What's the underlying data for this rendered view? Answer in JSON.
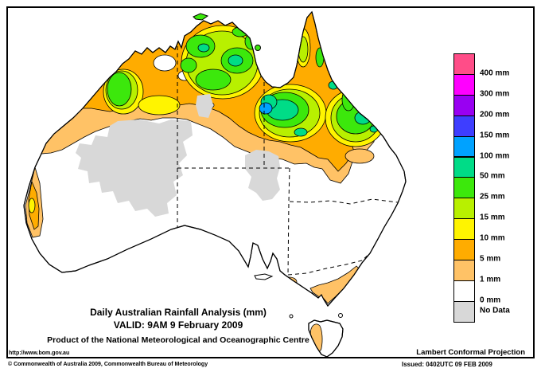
{
  "map": {
    "name": "Daily Australian Rainfall Analysis map",
    "region": "Australia"
  },
  "legend": {
    "items": [
      {
        "color": "#FF4D88",
        "label": "400 mm"
      },
      {
        "color": "#FF00FF",
        "label": "300 mm"
      },
      {
        "color": "#9900F2",
        "label": "200 mm"
      },
      {
        "color": "#3E3EFF",
        "label": "150 mm"
      },
      {
        "color": "#00A2FF",
        "label": "100 mm"
      },
      {
        "color": "#00DC87",
        "label": "50 mm"
      },
      {
        "color": "#3CE80C",
        "label": "25 mm"
      },
      {
        "color": "#B8F000",
        "label": "15 mm"
      },
      {
        "color": "#FFF400",
        "label": "10 mm"
      },
      {
        "color": "#FFAC00",
        "label": "5 mm"
      },
      {
        "color": "#FFC266",
        "label": "1 mm"
      },
      {
        "color": "#FFFFFF",
        "label": "0 mm"
      },
      {
        "color": "#D8D8D8",
        "label": "No Data"
      }
    ]
  },
  "titles": {
    "line1": "Daily Australian Rainfall Analysis (mm)",
    "line2": "VALID: 9AM  9 February 2009",
    "line3": "Product of the National Meteorological and Oceanographic Centre"
  },
  "footer": {
    "url": "http://www.bom.gov.au",
    "copyright": "© Commonwealth of Australia 2009, Commonwealth Bureau of Meteorology",
    "projection": "Lambert Conformal Projection",
    "issued": "Issued: 0402UTC 09 FEB 2009"
  },
  "colors": {
    "frame": "#000000",
    "land": "#FFFFFF",
    "no_data": "#D8D8D8"
  }
}
